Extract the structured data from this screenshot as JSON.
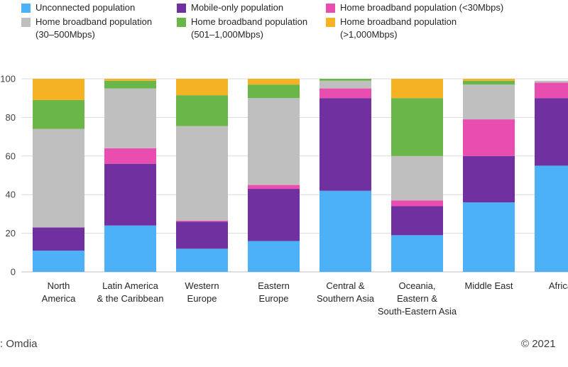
{
  "chart_data": {
    "type": "bar",
    "stacked": true,
    "categories": [
      [
        "North",
        "America"
      ],
      [
        "Latin America",
        "& the Caribbean"
      ],
      [
        "Western",
        "Europe"
      ],
      [
        "Eastern",
        "Europe"
      ],
      [
        "Central &",
        "Southern Asia"
      ],
      [
        "Oceania,",
        "Eastern &",
        "South-Eastern Asia"
      ],
      [
        "Middle East"
      ],
      [
        "Africa"
      ]
    ],
    "series": [
      {
        "name": [
          "Unconnected population"
        ],
        "color": "#4DB1F7",
        "values": [
          11,
          24,
          12,
          16,
          42,
          19,
          36,
          55
        ]
      },
      {
        "name": [
          "Mobile-only population"
        ],
        "color": "#7030A0",
        "values": [
          12,
          32,
          14,
          27,
          48,
          15,
          24,
          35
        ]
      },
      {
        "name": [
          "Home broadband population (<30Mbps)"
        ],
        "color": "#E84DAF",
        "values": [
          0,
          8,
          0.5,
          2,
          5,
          3,
          19,
          8
        ]
      },
      {
        "name": [
          "Home broadband population",
          "(30–500Mbps)"
        ],
        "color": "#BFBFBF",
        "values": [
          51,
          31,
          49,
          45,
          4,
          23,
          18,
          1
        ]
      },
      {
        "name": [
          "Home broadband population",
          "(501–1,000Mbps)"
        ],
        "color": "#6AB648",
        "values": [
          15,
          4,
          16,
          7,
          1,
          30,
          2,
          0
        ]
      },
      {
        "name": [
          "Home broadband population",
          "(>1,000Mbps)"
        ],
        "color": "#F5B324",
        "values": [
          11,
          1,
          8.5,
          3,
          0,
          10,
          1,
          0
        ]
      }
    ],
    "ylim": [
      0,
      100
    ],
    "yticks": [
      "0",
      "20",
      "40",
      "60",
      "80",
      "100"
    ],
    "grid": true,
    "legend_position": "top"
  },
  "footer": {
    "source": ": Omdia",
    "copyright": "© 2021"
  }
}
